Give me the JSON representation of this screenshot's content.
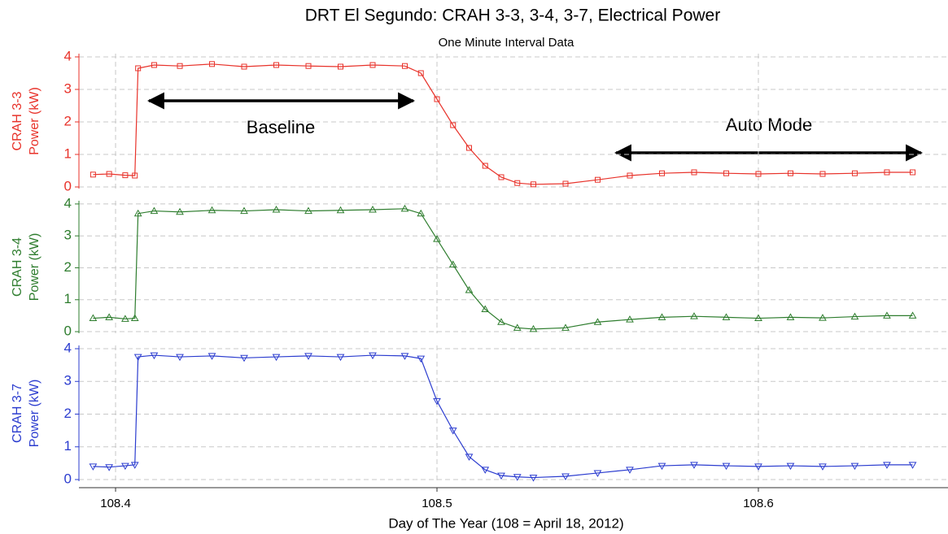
{
  "chart_data": [
    {
      "type": "line",
      "title": "DRT El Segundo: CRAH 3-3, 3-4, 3-7,  Electrical Power",
      "subtitle": "One Minute Interval Data",
      "ylabel": [
        "CRAH 3-3",
        "Power (kW)"
      ],
      "annotations": [
        "Baseline",
        "Auto Mode"
      ],
      "marker": "square",
      "xlim": [
        108.3886,
        108.659
      ],
      "ylim": [
        -0.05,
        4.1
      ],
      "yticks": [
        0,
        1,
        2,
        3,
        4
      ],
      "grid": true,
      "x": [
        108.393,
        108.398,
        108.403,
        108.406,
        108.407,
        108.412,
        108.42,
        108.43,
        108.44,
        108.45,
        108.46,
        108.47,
        108.48,
        108.49,
        108.495,
        108.5,
        108.505,
        108.51,
        108.515,
        108.52,
        108.525,
        108.53,
        108.54,
        108.55,
        108.56,
        108.57,
        108.58,
        108.59,
        108.6,
        108.61,
        108.62,
        108.63,
        108.64,
        108.648
      ],
      "series": [
        {
          "name": "CRAH 3-3",
          "color": "#e8322a",
          "values": [
            0.38,
            0.4,
            0.36,
            0.35,
            3.65,
            3.75,
            3.72,
            3.78,
            3.7,
            3.75,
            3.72,
            3.7,
            3.75,
            3.72,
            3.5,
            2.7,
            1.9,
            1.2,
            0.65,
            0.3,
            0.12,
            0.08,
            0.1,
            0.22,
            0.35,
            0.42,
            0.45,
            0.42,
            0.4,
            0.42,
            0.4,
            0.42,
            0.45,
            0.45
          ]
        }
      ]
    },
    {
      "type": "line",
      "ylabel": [
        "CRAH 3-4",
        "Power (kW)"
      ],
      "marker": "triangle-up",
      "xlim": [
        108.3886,
        108.659
      ],
      "ylim": [
        -0.05,
        4.1
      ],
      "yticks": [
        0,
        1,
        2,
        3,
        4
      ],
      "grid": true,
      "x": [
        108.393,
        108.398,
        108.403,
        108.406,
        108.407,
        108.412,
        108.42,
        108.43,
        108.44,
        108.45,
        108.46,
        108.47,
        108.48,
        108.49,
        108.495,
        108.5,
        108.505,
        108.51,
        108.515,
        108.52,
        108.525,
        108.53,
        108.54,
        108.55,
        108.56,
        108.57,
        108.58,
        108.59,
        108.6,
        108.61,
        108.62,
        108.63,
        108.64,
        108.648
      ],
      "series": [
        {
          "name": "CRAH 3-4",
          "color": "#2e7d2e",
          "values": [
            0.42,
            0.45,
            0.4,
            0.42,
            3.7,
            3.78,
            3.75,
            3.8,
            3.78,
            3.82,
            3.78,
            3.8,
            3.82,
            3.85,
            3.7,
            2.9,
            2.1,
            1.3,
            0.7,
            0.3,
            0.12,
            0.08,
            0.12,
            0.3,
            0.38,
            0.45,
            0.48,
            0.45,
            0.42,
            0.45,
            0.43,
            0.47,
            0.5,
            0.5
          ]
        }
      ]
    },
    {
      "type": "line",
      "ylabel": [
        "CRAH 3-7",
        "Power (kW)"
      ],
      "marker": "triangle-down",
      "xlabel": "Day of The Year (108 = April 18, 2012)",
      "xlim": [
        108.3886,
        108.659
      ],
      "xticks": [
        108.4,
        108.5,
        108.6
      ],
      "ylim": [
        -0.05,
        4.1
      ],
      "yticks": [
        0,
        1,
        2,
        3,
        4
      ],
      "grid": true,
      "x": [
        108.393,
        108.398,
        108.403,
        108.406,
        108.407,
        108.412,
        108.42,
        108.43,
        108.44,
        108.45,
        108.46,
        108.47,
        108.48,
        108.49,
        108.495,
        108.5,
        108.505,
        108.51,
        108.515,
        108.52,
        108.525,
        108.53,
        108.54,
        108.55,
        108.56,
        108.57,
        108.58,
        108.59,
        108.6,
        108.61,
        108.62,
        108.63,
        108.64,
        108.648
      ],
      "series": [
        {
          "name": "CRAH 3-7",
          "color": "#2b3ccf",
          "values": [
            0.4,
            0.38,
            0.42,
            0.45,
            3.75,
            3.8,
            3.75,
            3.78,
            3.72,
            3.75,
            3.78,
            3.75,
            3.8,
            3.78,
            3.7,
            2.4,
            1.5,
            0.7,
            0.3,
            0.12,
            0.08,
            0.06,
            0.1,
            0.2,
            0.3,
            0.42,
            0.45,
            0.42,
            0.4,
            0.42,
            0.4,
            0.42,
            0.45,
            0.45
          ]
        }
      ]
    }
  ]
}
